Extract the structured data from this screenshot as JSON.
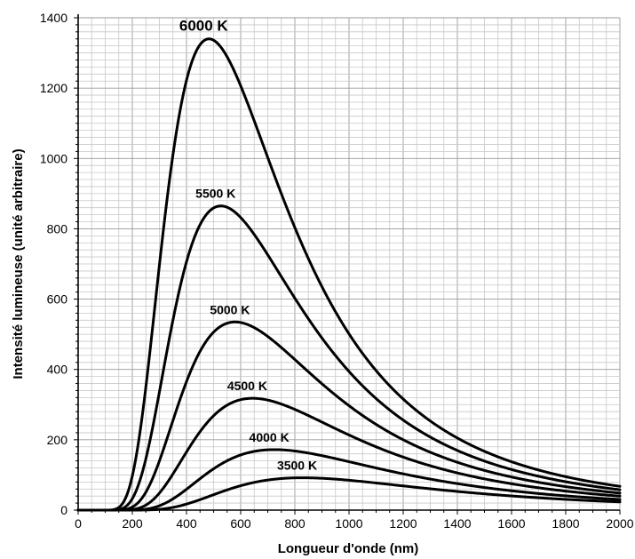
{
  "chart_data": {
    "type": "line",
    "xlabel": "Longueur d'onde (nm)",
    "ylabel": "Intensité lumineuse (unité arbitraire)",
    "xlim": [
      0,
      2000
    ],
    "ylim": [
      0,
      1400
    ],
    "x_ticks": [
      "0",
      "200",
      "400",
      "600",
      "800",
      "1000",
      "1200",
      "1400",
      "1600",
      "1800",
      "2000"
    ],
    "y_ticks": [
      "0",
      "200",
      "400",
      "600",
      "800",
      "1000",
      "1200",
      "1400"
    ],
    "grid": true,
    "series": [
      {
        "name": "6000 K",
        "temperature": 6000,
        "peak_x": 483,
        "peak_y": 1340
      },
      {
        "name": "5500 K",
        "temperature": 5500,
        "peak_x": 527,
        "peak_y": 865
      },
      {
        "name": "5000 K",
        "temperature": 5000,
        "peak_x": 580,
        "peak_y": 535
      },
      {
        "name": "4500 K",
        "temperature": 4500,
        "peak_x": 644,
        "peak_y": 318
      },
      {
        "name": "4000 K",
        "temperature": 4000,
        "peak_x": 725,
        "peak_y": 172
      },
      {
        "name": "3500 K",
        "temperature": 3500,
        "peak_x": 828,
        "peak_y": 92
      }
    ]
  },
  "colors": {
    "curve": "#000000",
    "grid_minor": "#c8c8c8",
    "grid_major": "#9a9a9a"
  }
}
